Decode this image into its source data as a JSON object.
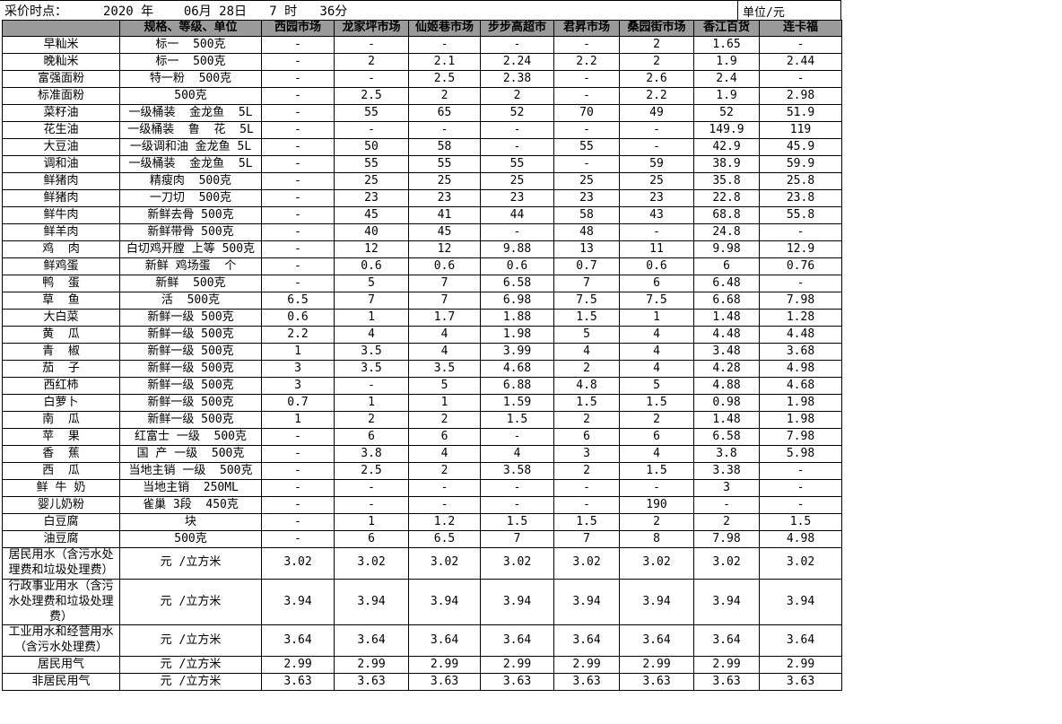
{
  "meta": {
    "title_label": "采价时点：",
    "title_value": "2020 年    06月 28日   7 时   36分",
    "unit_label": "单位/元"
  },
  "table": {
    "spec_header": "规格、等级、单位",
    "markets": [
      "西园市场",
      "龙家坪市场",
      "仙姬巷市场",
      "步步高超市",
      "君昇市场",
      "桑园街市场",
      "香江百货",
      "连卡福"
    ],
    "rows": [
      {
        "name": "早籼米",
        "spec": "标一  500克",
        "values": [
          "-",
          "-",
          "-",
          "-",
          "-",
          "2",
          "1.65",
          "-"
        ]
      },
      {
        "name": "晚籼米",
        "spec": "标一  500克",
        "values": [
          "-",
          "2",
          "2.1",
          "2.24",
          "2.2",
          "2",
          "1.9",
          "2.44"
        ]
      },
      {
        "name": "富强面粉",
        "spec": "特一粉  500克",
        "values": [
          "-",
          "-",
          "2.5",
          "2.38",
          "-",
          "2.6",
          "2.4",
          "-"
        ]
      },
      {
        "name": "标准面粉",
        "spec": "500克",
        "values": [
          "-",
          "2.5",
          "2",
          "2",
          "-",
          "2.2",
          "1.9",
          "2.98"
        ]
      },
      {
        "name": "菜籽油",
        "spec": "一级桶装  金龙鱼  5L",
        "values": [
          "-",
          "55",
          "65",
          "52",
          "70",
          "49",
          "52",
          "51.9"
        ]
      },
      {
        "name": "花生油",
        "spec": "一级桶装  鲁  花  5L",
        "values": [
          "-",
          "-",
          "-",
          "-",
          "-",
          "-",
          "149.9",
          "119"
        ]
      },
      {
        "name": "大豆油",
        "spec": "一级调和油 金龙鱼 5L",
        "values": [
          "-",
          "50",
          "58",
          "-",
          "55",
          "-",
          "42.9",
          "45.9"
        ]
      },
      {
        "name": "调和油",
        "spec": "一级桶装  金龙鱼  5L",
        "values": [
          "-",
          "55",
          "55",
          "55",
          "-",
          "59",
          "38.9",
          "59.9"
        ]
      },
      {
        "name": "鲜猪肉",
        "spec": "精瘦肉  500克",
        "values": [
          "-",
          "25",
          "25",
          "25",
          "25",
          "25",
          "35.8",
          "25.8"
        ]
      },
      {
        "name": "鲜猪肉",
        "spec": "一刀切  500克",
        "values": [
          "-",
          "23",
          "23",
          "23",
          "23",
          "23",
          "22.8",
          "23.8"
        ]
      },
      {
        "name": "鲜牛肉",
        "spec": "新鲜去骨 500克",
        "values": [
          "-",
          "45",
          "41",
          "44",
          "58",
          "43",
          "68.8",
          "55.8"
        ]
      },
      {
        "name": "鲜羊肉",
        "spec": "新鲜带骨 500克",
        "values": [
          "-",
          "40",
          "45",
          "-",
          "48",
          "-",
          "24.8",
          "-"
        ]
      },
      {
        "name": "鸡  肉",
        "spec": "白切鸡开膛 上等 500克",
        "values": [
          "-",
          "12",
          "12",
          "9.88",
          "13",
          "11",
          "9.98",
          "12.9"
        ]
      },
      {
        "name": "鲜鸡蛋",
        "spec": "新鲜 鸡场蛋  个",
        "values": [
          "-",
          "0.6",
          "0.6",
          "0.6",
          "0.7",
          "0.6",
          "6",
          "0.76"
        ]
      },
      {
        "name": "鸭  蛋",
        "spec": "新鲜  500克",
        "values": [
          "-",
          "5",
          "7",
          "6.58",
          "7",
          "6",
          "6.48",
          "-"
        ]
      },
      {
        "name": "草  鱼",
        "spec": "活  500克",
        "values": [
          "6.5",
          "7",
          "7",
          "6.98",
          "7.5",
          "7.5",
          "6.68",
          "7.98"
        ]
      },
      {
        "name": "大白菜",
        "spec": "新鲜一级 500克",
        "values": [
          "0.6",
          "1",
          "1.7",
          "1.88",
          "1.5",
          "1",
          "1.48",
          "1.28"
        ]
      },
      {
        "name": "黄  瓜",
        "spec": "新鲜一级 500克",
        "values": [
          "2.2",
          "4",
          "4",
          "1.98",
          "5",
          "4",
          "4.48",
          "4.48"
        ]
      },
      {
        "name": "青  椒",
        "spec": "新鲜一级 500克",
        "values": [
          "1",
          "3.5",
          "4",
          "3.99",
          "4",
          "4",
          "3.48",
          "3.68"
        ]
      },
      {
        "name": "茄  子",
        "spec": "新鲜一级 500克",
        "values": [
          "3",
          "3.5",
          "3.5",
          "4.68",
          "2",
          "4",
          "4.28",
          "4.98"
        ]
      },
      {
        "name": "西红柿",
        "spec": "新鲜一级 500克",
        "values": [
          "3",
          "-",
          "5",
          "6.88",
          "4.8",
          "5",
          "4.88",
          "4.68"
        ]
      },
      {
        "name": "白萝卜",
        "spec": "新鲜一级 500克",
        "values": [
          "0.7",
          "1",
          "1",
          "1.59",
          "1.5",
          "1.5",
          "0.98",
          "1.98"
        ]
      },
      {
        "name": "南  瓜",
        "spec": "新鲜一级 500克",
        "values": [
          "1",
          "2",
          "2",
          "1.5",
          "2",
          "2",
          "1.48",
          "1.98"
        ]
      },
      {
        "name": "苹  果",
        "spec": "红富士 一级  500克",
        "values": [
          "-",
          "6",
          "6",
          "-",
          "6",
          "6",
          "6.58",
          "7.98"
        ]
      },
      {
        "name": "香  蕉",
        "spec": "国 产 一级  500克",
        "values": [
          "-",
          "3.8",
          "4",
          "4",
          "3",
          "4",
          "3.8",
          "5.98"
        ]
      },
      {
        "name": "西  瓜",
        "spec": "当地主销 一级  500克",
        "values": [
          "-",
          "2.5",
          "2",
          "3.58",
          "2",
          "1.5",
          "3.38",
          "-"
        ]
      },
      {
        "name": "鲜 牛 奶",
        "spec": "当地主销  250ML",
        "values": [
          "-",
          "-",
          "-",
          "-",
          "-",
          "-",
          "3",
          "-"
        ]
      },
      {
        "name": "婴儿奶粉",
        "spec": "雀巢 3段  450克",
        "values": [
          "-",
          "-",
          "-",
          "-",
          "-",
          "190",
          "-",
          "-"
        ]
      },
      {
        "name": "白豆腐",
        "spec": "块",
        "values": [
          "-",
          "1",
          "1.2",
          "1.5",
          "1.5",
          "2",
          "2",
          "1.5"
        ]
      },
      {
        "name": "油豆腐",
        "spec": "500克",
        "values": [
          "-",
          "6",
          "6.5",
          "7",
          "7",
          "8",
          "7.98",
          "4.98"
        ]
      },
      {
        "name": "居民用水（含污水处理费和垃圾处理费）",
        "spec": "元 /立方米",
        "values": [
          "3.02",
          "3.02",
          "3.02",
          "3.02",
          "3.02",
          "3.02",
          "3.02",
          "3.02"
        ]
      },
      {
        "name": "行政事业用水（含污水处理费和垃圾处理费）",
        "spec": "元 /立方米",
        "values": [
          "3.94",
          "3.94",
          "3.94",
          "3.94",
          "3.94",
          "3.94",
          "3.94",
          "3.94"
        ]
      },
      {
        "name": "工业用水和经营用水（含污水处理费）",
        "spec": "元 /立方米",
        "values": [
          "3.64",
          "3.64",
          "3.64",
          "3.64",
          "3.64",
          "3.64",
          "3.64",
          "3.64"
        ]
      },
      {
        "name": "居民用气",
        "spec": "元 /立方米",
        "values": [
          "2.99",
          "2.99",
          "2.99",
          "2.99",
          "2.99",
          "2.99",
          "2.99",
          "2.99"
        ]
      },
      {
        "name": "非居民用气",
        "spec": "元 /立方米",
        "values": [
          "3.63",
          "3.63",
          "3.63",
          "3.63",
          "3.63",
          "3.63",
          "3.63",
          "3.63"
        ]
      }
    ]
  },
  "colors": {
    "header_bg": "#9b9b9b",
    "border": "#000000",
    "background": "#ffffff"
  }
}
